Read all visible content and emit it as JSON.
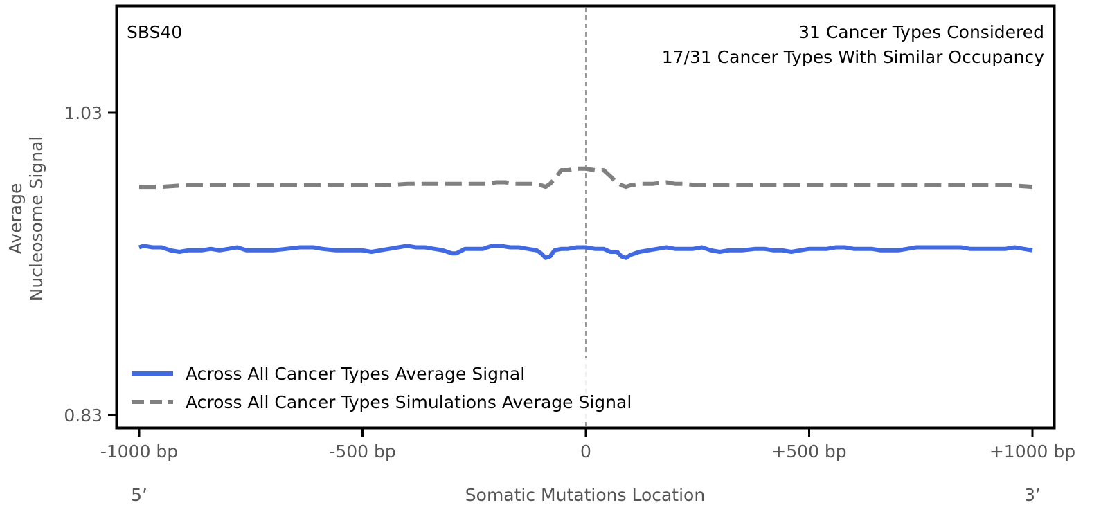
{
  "chart_data": {
    "type": "line",
    "signature_label": "SBS40",
    "annotations": [
      "31 Cancer Types Considered",
      "17/31 Cancer Types With Similar Occupancy"
    ],
    "xlabel": "Somatic Mutations Location",
    "ylabel": [
      "Average",
      "Nucleosome Signal"
    ],
    "xlim": [
      -1000,
      1000
    ],
    "ylim": [
      0.822,
      1.1
    ],
    "x_ticks": [
      {
        "value": -1000,
        "label": "-1000 bp"
      },
      {
        "value": -500,
        "label": "-500 bp"
      },
      {
        "value": 0,
        "label": "0"
      },
      {
        "value": 500,
        "label": "+500 bp"
      },
      {
        "value": 1000,
        "label": "+1000 bp"
      }
    ],
    "y_ticks": [
      {
        "value": 1.03,
        "label": "1.03"
      },
      {
        "value": 0.83,
        "label": "0.83"
      }
    ],
    "end_labels": {
      "left": "5’",
      "right": "3’"
    },
    "center_line": {
      "x": 0,
      "style": "dashed",
      "color": "#808080"
    },
    "legend": {
      "placement": "lower-left"
    },
    "series": [
      {
        "name": "Across All Cancer Types Average Signal",
        "color": "#4169e1",
        "style": "solid",
        "points": [
          [
            -1000,
            0.941
          ],
          [
            -990,
            0.942
          ],
          [
            -970,
            0.941
          ],
          [
            -950,
            0.941
          ],
          [
            -930,
            0.939
          ],
          [
            -910,
            0.938
          ],
          [
            -890,
            0.939
          ],
          [
            -860,
            0.939
          ],
          [
            -840,
            0.94
          ],
          [
            -820,
            0.939
          ],
          [
            -800,
            0.94
          ],
          [
            -780,
            0.941
          ],
          [
            -760,
            0.939
          ],
          [
            -740,
            0.939
          ],
          [
            -720,
            0.939
          ],
          [
            -700,
            0.939
          ],
          [
            -670,
            0.94
          ],
          [
            -640,
            0.941
          ],
          [
            -610,
            0.941
          ],
          [
            -590,
            0.94
          ],
          [
            -560,
            0.939
          ],
          [
            -540,
            0.939
          ],
          [
            -520,
            0.939
          ],
          [
            -500,
            0.939
          ],
          [
            -480,
            0.938
          ],
          [
            -460,
            0.939
          ],
          [
            -440,
            0.94
          ],
          [
            -420,
            0.941
          ],
          [
            -400,
            0.942
          ],
          [
            -380,
            0.941
          ],
          [
            -360,
            0.941
          ],
          [
            -340,
            0.94
          ],
          [
            -320,
            0.939
          ],
          [
            -300,
            0.937
          ],
          [
            -290,
            0.937
          ],
          [
            -270,
            0.94
          ],
          [
            -250,
            0.94
          ],
          [
            -230,
            0.94
          ],
          [
            -210,
            0.942
          ],
          [
            -190,
            0.942
          ],
          [
            -170,
            0.941
          ],
          [
            -150,
            0.941
          ],
          [
            -130,
            0.94
          ],
          [
            -110,
            0.939
          ],
          [
            -100,
            0.937
          ],
          [
            -90,
            0.934
          ],
          [
            -80,
            0.935
          ],
          [
            -70,
            0.939
          ],
          [
            -55,
            0.94
          ],
          [
            -40,
            0.94
          ],
          [
            -20,
            0.941
          ],
          [
            0,
            0.941
          ],
          [
            20,
            0.94
          ],
          [
            40,
            0.94
          ],
          [
            55,
            0.938
          ],
          [
            70,
            0.938
          ],
          [
            80,
            0.935
          ],
          [
            90,
            0.934
          ],
          [
            100,
            0.936
          ],
          [
            120,
            0.938
          ],
          [
            140,
            0.939
          ],
          [
            160,
            0.94
          ],
          [
            180,
            0.941
          ],
          [
            200,
            0.94
          ],
          [
            220,
            0.94
          ],
          [
            240,
            0.94
          ],
          [
            260,
            0.941
          ],
          [
            280,
            0.939
          ],
          [
            300,
            0.938
          ],
          [
            320,
            0.939
          ],
          [
            350,
            0.939
          ],
          [
            380,
            0.94
          ],
          [
            400,
            0.94
          ],
          [
            420,
            0.939
          ],
          [
            440,
            0.939
          ],
          [
            460,
            0.938
          ],
          [
            480,
            0.939
          ],
          [
            500,
            0.94
          ],
          [
            520,
            0.94
          ],
          [
            540,
            0.94
          ],
          [
            560,
            0.941
          ],
          [
            580,
            0.941
          ],
          [
            600,
            0.94
          ],
          [
            620,
            0.94
          ],
          [
            640,
            0.94
          ],
          [
            660,
            0.939
          ],
          [
            680,
            0.939
          ],
          [
            700,
            0.939
          ],
          [
            720,
            0.94
          ],
          [
            740,
            0.941
          ],
          [
            760,
            0.941
          ],
          [
            780,
            0.941
          ],
          [
            800,
            0.941
          ],
          [
            820,
            0.941
          ],
          [
            840,
            0.941
          ],
          [
            860,
            0.94
          ],
          [
            880,
            0.94
          ],
          [
            900,
            0.94
          ],
          [
            920,
            0.94
          ],
          [
            940,
            0.94
          ],
          [
            960,
            0.941
          ],
          [
            980,
            0.94
          ],
          [
            1000,
            0.939
          ]
        ]
      },
      {
        "name": "Across All Cancer Types Simulations Average Signal",
        "color": "#808080",
        "style": "dashed",
        "points": [
          [
            -1000,
            0.981
          ],
          [
            -950,
            0.981
          ],
          [
            -900,
            0.982
          ],
          [
            -850,
            0.982
          ],
          [
            -800,
            0.982
          ],
          [
            -750,
            0.982
          ],
          [
            -700,
            0.982
          ],
          [
            -650,
            0.982
          ],
          [
            -600,
            0.982
          ],
          [
            -550,
            0.982
          ],
          [
            -500,
            0.982
          ],
          [
            -450,
            0.982
          ],
          [
            -400,
            0.983
          ],
          [
            -350,
            0.983
          ],
          [
            -300,
            0.983
          ],
          [
            -250,
            0.983
          ],
          [
            -220,
            0.983
          ],
          [
            -200,
            0.984
          ],
          [
            -180,
            0.984
          ],
          [
            -160,
            0.983
          ],
          [
            -140,
            0.983
          ],
          [
            -120,
            0.983
          ],
          [
            -100,
            0.982
          ],
          [
            -90,
            0.981
          ],
          [
            -80,
            0.983
          ],
          [
            -65,
            0.988
          ],
          [
            -55,
            0.992
          ],
          [
            -40,
            0.992
          ],
          [
            -20,
            0.993
          ],
          [
            0,
            0.993
          ],
          [
            20,
            0.992
          ],
          [
            40,
            0.992
          ],
          [
            55,
            0.988
          ],
          [
            65,
            0.985
          ],
          [
            80,
            0.982
          ],
          [
            90,
            0.981
          ],
          [
            100,
            0.982
          ],
          [
            120,
            0.983
          ],
          [
            150,
            0.983
          ],
          [
            180,
            0.984
          ],
          [
            200,
            0.983
          ],
          [
            220,
            0.983
          ],
          [
            250,
            0.982
          ],
          [
            300,
            0.982
          ],
          [
            350,
            0.982
          ],
          [
            400,
            0.982
          ],
          [
            450,
            0.982
          ],
          [
            500,
            0.982
          ],
          [
            550,
            0.982
          ],
          [
            600,
            0.982
          ],
          [
            650,
            0.982
          ],
          [
            700,
            0.982
          ],
          [
            750,
            0.982
          ],
          [
            800,
            0.982
          ],
          [
            850,
            0.982
          ],
          [
            900,
            0.982
          ],
          [
            950,
            0.982
          ],
          [
            1000,
            0.981
          ]
        ]
      }
    ]
  }
}
